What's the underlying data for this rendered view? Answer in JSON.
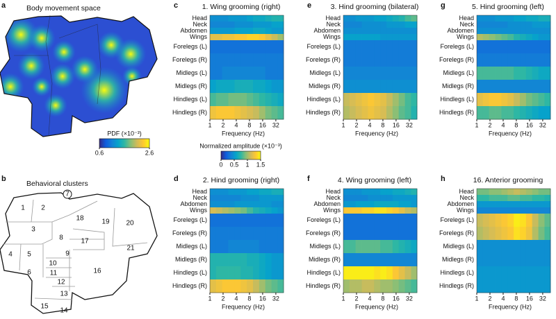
{
  "panel_a": {
    "letter": "a",
    "title": "Body movement space",
    "colorbar": {
      "label": "PDF (×10⁻³)",
      "lim": [
        0.6,
        2.6
      ],
      "ticks": [
        0.6,
        2.6
      ]
    }
  },
  "panel_b": {
    "letter": "b",
    "title": "Behavioral clusters",
    "clusters": [
      "1",
      "2",
      "3",
      "4",
      "5",
      "6",
      "7",
      "8",
      "9",
      "10",
      "11",
      "12",
      "13",
      "14",
      "15",
      "16",
      "17",
      "18",
      "19",
      "20",
      "21"
    ]
  },
  "amplitude_colorbar": {
    "label": "Normalized amplitude (×10⁻³)",
    "lim": [
      0,
      1.5
    ],
    "ticks": [
      0,
      0.5,
      1,
      1.5
    ]
  },
  "chart_data": [
    {
      "type": "heatmap",
      "letter": "c",
      "title": "1. Wing grooming (right)",
      "rows": [
        "Head",
        "Neck",
        "Abdomen",
        "Wings",
        "Forelegs (L)",
        "Forelegs (R)",
        "Midlegs (L)",
        "Midlegs (R)",
        "Hindlegs (L)",
        "Hindlegs (R)"
      ],
      "x": [
        1.17,
        1.62,
        2.24,
        3.1,
        4.3,
        5.9,
        8.2,
        11.3,
        15.6,
        21.6,
        29.9,
        41.3
      ],
      "xlim": [
        1,
        48
      ],
      "xticks": [
        1,
        2,
        4,
        8,
        16,
        32
      ],
      "log_x": true,
      "xlabel": "Frequency (Hz)",
      "values": [
        [
          0.45,
          0.45,
          0.45,
          0.5,
          0.5,
          0.5,
          0.55,
          0.6,
          0.6,
          0.65,
          0.7,
          0.7
        ],
        [
          0.4,
          0.4,
          0.4,
          0.4,
          0.45,
          0.45,
          0.45,
          0.5,
          0.5,
          0.5,
          0.55,
          0.55
        ],
        [
          0.5,
          0.5,
          0.5,
          0.5,
          0.55,
          0.55,
          0.55,
          0.6,
          0.6,
          0.55,
          0.5,
          0.5
        ],
        [
          1.2,
          1.2,
          1.25,
          1.25,
          1.3,
          1.3,
          1.35,
          1.35,
          1.3,
          1.2,
          1.1,
          1.0
        ],
        [
          0.3,
          0.3,
          0.3,
          0.3,
          0.3,
          0.3,
          0.3,
          0.3,
          0.3,
          0.3,
          0.3,
          0.3
        ],
        [
          0.35,
          0.35,
          0.35,
          0.35,
          0.35,
          0.35,
          0.35,
          0.35,
          0.35,
          0.35,
          0.35,
          0.35
        ],
        [
          0.35,
          0.35,
          0.4,
          0.4,
          0.4,
          0.4,
          0.4,
          0.4,
          0.4,
          0.35,
          0.35,
          0.35
        ],
        [
          0.55,
          0.6,
          0.6,
          0.6,
          0.65,
          0.65,
          0.65,
          0.6,
          0.6,
          0.55,
          0.5,
          0.5
        ],
        [
          0.8,
          0.85,
          0.85,
          0.9,
          0.9,
          0.9,
          0.85,
          0.8,
          0.75,
          0.7,
          0.65,
          0.6
        ],
        [
          1.25,
          1.3,
          1.3,
          1.3,
          1.25,
          1.2,
          1.15,
          1.1,
          1.0,
          0.9,
          0.85,
          0.8
        ]
      ]
    },
    {
      "type": "heatmap",
      "letter": "d",
      "title": "2. Hind grooming (right)",
      "rows": [
        "Head",
        "Neck",
        "Abdomen",
        "Wings",
        "Forelegs (L)",
        "Forelegs (R)",
        "Midlegs (L)",
        "Midlegs (R)",
        "Hindlegs (L)",
        "Hindlegs (R)"
      ],
      "x": [
        1.17,
        1.62,
        2.24,
        3.1,
        4.3,
        5.9,
        8.2,
        11.3,
        15.6,
        21.6,
        29.9,
        41.3
      ],
      "xlim": [
        1,
        48
      ],
      "xticks": [
        1,
        2,
        4,
        8,
        16,
        32
      ],
      "log_x": true,
      "xlabel": "Frequency (Hz)",
      "values": [
        [
          0.45,
          0.45,
          0.45,
          0.5,
          0.5,
          0.5,
          0.55,
          0.55,
          0.6,
          0.6,
          0.65,
          0.65
        ],
        [
          0.4,
          0.4,
          0.4,
          0.4,
          0.4,
          0.45,
          0.45,
          0.45,
          0.5,
          0.5,
          0.5,
          0.5
        ],
        [
          0.45,
          0.45,
          0.45,
          0.45,
          0.5,
          0.5,
          0.5,
          0.5,
          0.5,
          0.5,
          0.45,
          0.45
        ],
        [
          1.15,
          1.1,
          1.05,
          1.0,
          0.95,
          0.9,
          0.8,
          0.7,
          0.65,
          0.6,
          0.55,
          0.5
        ],
        [
          0.3,
          0.3,
          0.3,
          0.3,
          0.3,
          0.3,
          0.3,
          0.3,
          0.3,
          0.3,
          0.3,
          0.3
        ],
        [
          0.35,
          0.35,
          0.35,
          0.35,
          0.35,
          0.35,
          0.35,
          0.35,
          0.35,
          0.35,
          0.35,
          0.35
        ],
        [
          0.35,
          0.35,
          0.35,
          0.4,
          0.4,
          0.4,
          0.4,
          0.4,
          0.35,
          0.35,
          0.35,
          0.35
        ],
        [
          0.7,
          0.7,
          0.7,
          0.7,
          0.7,
          0.7,
          0.65,
          0.65,
          0.6,
          0.55,
          0.5,
          0.5
        ],
        [
          0.7,
          0.75,
          0.75,
          0.75,
          0.75,
          0.7,
          0.7,
          0.65,
          0.6,
          0.55,
          0.5,
          0.5
        ],
        [
          1.2,
          1.25,
          1.3,
          1.3,
          1.3,
          1.25,
          1.2,
          1.1,
          1.0,
          0.9,
          0.85,
          0.8
        ]
      ]
    },
    {
      "type": "heatmap",
      "letter": "e",
      "title": "3. Hind grooming (bilateral)",
      "rows": [
        "Head",
        "Neck",
        "Abdomen",
        "Wings",
        "Forelegs (L)",
        "Forelegs (R)",
        "Midlegs (L)",
        "Midlegs (R)",
        "Hindlegs (L)",
        "Hindlegs (R)"
      ],
      "x": [
        1.17,
        1.62,
        2.24,
        3.1,
        4.3,
        5.9,
        8.2,
        11.3,
        15.6,
        21.6,
        29.9,
        41.3
      ],
      "xlim": [
        1,
        48
      ],
      "xticks": [
        1,
        2,
        4,
        8,
        16,
        32
      ],
      "log_x": true,
      "xlabel": "Frequency (Hz)",
      "values": [
        [
          0.45,
          0.45,
          0.5,
          0.5,
          0.5,
          0.55,
          0.55,
          0.6,
          0.65,
          0.7,
          0.8,
          0.85
        ],
        [
          0.4,
          0.4,
          0.4,
          0.45,
          0.45,
          0.45,
          0.45,
          0.5,
          0.5,
          0.5,
          0.55,
          0.55
        ],
        [
          0.45,
          0.45,
          0.45,
          0.45,
          0.45,
          0.45,
          0.45,
          0.45,
          0.45,
          0.45,
          0.45,
          0.45
        ],
        [
          0.55,
          0.55,
          0.55,
          0.55,
          0.55,
          0.55,
          0.5,
          0.5,
          0.5,
          0.5,
          0.5,
          0.5
        ],
        [
          0.35,
          0.35,
          0.35,
          0.35,
          0.35,
          0.35,
          0.35,
          0.35,
          0.35,
          0.35,
          0.35,
          0.35
        ],
        [
          0.35,
          0.35,
          0.35,
          0.35,
          0.35,
          0.35,
          0.35,
          0.35,
          0.35,
          0.35,
          0.35,
          0.35
        ],
        [
          0.4,
          0.4,
          0.4,
          0.4,
          0.4,
          0.4,
          0.4,
          0.4,
          0.4,
          0.4,
          0.4,
          0.4
        ],
        [
          0.45,
          0.45,
          0.45,
          0.45,
          0.45,
          0.45,
          0.45,
          0.45,
          0.45,
          0.45,
          0.45,
          0.45
        ],
        [
          1.1,
          1.15,
          1.2,
          1.25,
          1.3,
          1.25,
          1.2,
          1.1,
          1.0,
          0.9,
          0.8,
          0.75
        ],
        [
          1.05,
          1.1,
          1.15,
          1.2,
          1.25,
          1.2,
          1.15,
          1.05,
          0.95,
          0.85,
          0.8,
          0.7
        ]
      ]
    },
    {
      "type": "heatmap",
      "letter": "f",
      "title": "4. Wing grooming (left)",
      "rows": [
        "Head",
        "Neck",
        "Abdomen",
        "Wings",
        "Forelegs (L)",
        "Forelegs (R)",
        "Midlegs (L)",
        "Midlegs (R)",
        "Hindlegs (L)",
        "Hindlegs (R)"
      ],
      "x": [
        1.17,
        1.62,
        2.24,
        3.1,
        4.3,
        5.9,
        8.2,
        11.3,
        15.6,
        21.6,
        29.9,
        41.3
      ],
      "xlim": [
        1,
        48
      ],
      "xticks": [
        1,
        2,
        4,
        8,
        16,
        32
      ],
      "log_x": true,
      "xlabel": "Frequency (Hz)",
      "values": [
        [
          0.45,
          0.45,
          0.45,
          0.5,
          0.5,
          0.5,
          0.55,
          0.55,
          0.6,
          0.6,
          0.65,
          0.7
        ],
        [
          0.4,
          0.4,
          0.4,
          0.4,
          0.45,
          0.45,
          0.45,
          0.45,
          0.5,
          0.5,
          0.5,
          0.5
        ],
        [
          0.5,
          0.5,
          0.55,
          0.55,
          0.55,
          0.6,
          0.6,
          0.6,
          0.6,
          0.55,
          0.55,
          0.5
        ],
        [
          1.3,
          1.3,
          1.3,
          1.35,
          1.35,
          1.4,
          1.4,
          1.35,
          1.3,
          1.2,
          1.1,
          1.05
        ],
        [
          0.3,
          0.3,
          0.3,
          0.3,
          0.3,
          0.3,
          0.3,
          0.3,
          0.3,
          0.3,
          0.3,
          0.3
        ],
        [
          0.3,
          0.3,
          0.3,
          0.3,
          0.3,
          0.3,
          0.3,
          0.3,
          0.3,
          0.3,
          0.3,
          0.3
        ],
        [
          0.8,
          0.8,
          0.85,
          0.85,
          0.85,
          0.85,
          0.8,
          0.8,
          0.75,
          0.7,
          0.65,
          0.6
        ],
        [
          0.4,
          0.4,
          0.4,
          0.4,
          0.4,
          0.4,
          0.4,
          0.4,
          0.4,
          0.4,
          0.4,
          0.4
        ],
        [
          1.45,
          1.45,
          1.45,
          1.45,
          1.45,
          1.4,
          1.45,
          1.4,
          1.3,
          1.2,
          1.1,
          1.0
        ],
        [
          1.0,
          1.05,
          1.05,
          1.1,
          1.1,
          1.05,
          1.0,
          1.0,
          0.95,
          0.9,
          0.85,
          0.8
        ]
      ]
    },
    {
      "type": "heatmap",
      "letter": "g",
      "title": "5. Hind grooming (left)",
      "rows": [
        "Head",
        "Neck",
        "Abdomen",
        "Wings",
        "Forelegs (L)",
        "Forelegs (R)",
        "Midlegs (L)",
        "Midlegs (R)",
        "Hindlegs (L)",
        "Hindlegs (R)"
      ],
      "x": [
        1.17,
        1.62,
        2.24,
        3.1,
        4.3,
        5.9,
        8.2,
        11.3,
        15.6,
        21.6,
        29.9,
        41.3
      ],
      "xlim": [
        1,
        48
      ],
      "xticks": [
        1,
        2,
        4,
        8,
        16,
        32
      ],
      "log_x": true,
      "xlabel": "Frequency (Hz)",
      "values": [
        [
          0.45,
          0.45,
          0.45,
          0.5,
          0.5,
          0.5,
          0.55,
          0.55,
          0.6,
          0.6,
          0.65,
          0.65
        ],
        [
          0.4,
          0.4,
          0.4,
          0.4,
          0.4,
          0.45,
          0.45,
          0.45,
          0.45,
          0.5,
          0.5,
          0.5
        ],
        [
          0.45,
          0.45,
          0.45,
          0.45,
          0.45,
          0.45,
          0.45,
          0.45,
          0.45,
          0.45,
          0.45,
          0.45
        ],
        [
          1.05,
          1.0,
          0.95,
          0.9,
          0.85,
          0.8,
          0.7,
          0.65,
          0.6,
          0.55,
          0.5,
          0.5
        ],
        [
          0.3,
          0.3,
          0.3,
          0.3,
          0.3,
          0.3,
          0.3,
          0.3,
          0.3,
          0.3,
          0.3,
          0.3
        ],
        [
          0.35,
          0.35,
          0.35,
          0.35,
          0.35,
          0.35,
          0.35,
          0.35,
          0.35,
          0.35,
          0.35,
          0.35
        ],
        [
          0.8,
          0.8,
          0.8,
          0.8,
          0.8,
          0.8,
          0.75,
          0.75,
          0.7,
          0.65,
          0.6,
          0.6
        ],
        [
          0.4,
          0.4,
          0.4,
          0.4,
          0.4,
          0.4,
          0.4,
          0.4,
          0.4,
          0.4,
          0.4,
          0.4
        ],
        [
          1.2,
          1.25,
          1.3,
          1.3,
          1.25,
          1.2,
          1.1,
          1.0,
          0.9,
          0.85,
          0.8,
          0.75
        ],
        [
          0.8,
          0.8,
          0.85,
          0.85,
          0.8,
          0.8,
          0.75,
          0.7,
          0.65,
          0.6,
          0.55,
          0.55
        ]
      ]
    },
    {
      "type": "heatmap",
      "letter": "h",
      "title": "16. Anterior grooming",
      "rows": [
        "Head",
        "Neck",
        "Abdomen",
        "Wings",
        "Forelegs (L)",
        "Forelegs (R)",
        "Midlegs (L)",
        "Midlegs (R)",
        "Hindlegs (L)",
        "Hindlegs (R)"
      ],
      "x": [
        1.17,
        1.62,
        2.24,
        3.1,
        4.3,
        5.9,
        8.2,
        11.3,
        15.6,
        21.6,
        29.9,
        41.3
      ],
      "xlim": [
        1,
        48
      ],
      "xticks": [
        1,
        2,
        4,
        8,
        16,
        32
      ],
      "log_x": true,
      "xlabel": "Frequency (Hz)",
      "values": [
        [
          0.9,
          0.9,
          0.95,
          0.95,
          1.0,
          1.05,
          1.1,
          1.05,
          1.0,
          0.95,
          0.9,
          0.9
        ],
        [
          0.75,
          0.75,
          0.8,
          0.8,
          0.8,
          0.85,
          0.85,
          0.8,
          0.8,
          0.75,
          0.75,
          0.7
        ],
        [
          0.5,
          0.5,
          0.5,
          0.5,
          0.5,
          0.5,
          0.5,
          0.5,
          0.5,
          0.5,
          0.5,
          0.5
        ],
        [
          0.4,
          0.4,
          0.4,
          0.4,
          0.4,
          0.4,
          0.4,
          0.4,
          0.4,
          0.4,
          0.4,
          0.4
        ],
        [
          1.1,
          1.15,
          1.2,
          1.25,
          1.3,
          1.35,
          1.45,
          1.4,
          1.3,
          1.1,
          0.95,
          0.85
        ],
        [
          1.05,
          1.1,
          1.15,
          1.2,
          1.25,
          1.3,
          1.4,
          1.35,
          1.25,
          1.05,
          0.9,
          0.8
        ],
        [
          0.45,
          0.45,
          0.45,
          0.45,
          0.45,
          0.45,
          0.45,
          0.45,
          0.45,
          0.45,
          0.45,
          0.45
        ],
        [
          0.45,
          0.45,
          0.45,
          0.45,
          0.45,
          0.45,
          0.45,
          0.45,
          0.45,
          0.45,
          0.45,
          0.45
        ],
        [
          0.5,
          0.5,
          0.5,
          0.5,
          0.5,
          0.5,
          0.5,
          0.5,
          0.5,
          0.5,
          0.5,
          0.5
        ],
        [
          0.5,
          0.5,
          0.5,
          0.5,
          0.5,
          0.5,
          0.5,
          0.5,
          0.5,
          0.5,
          0.5,
          0.5
        ]
      ]
    }
  ]
}
